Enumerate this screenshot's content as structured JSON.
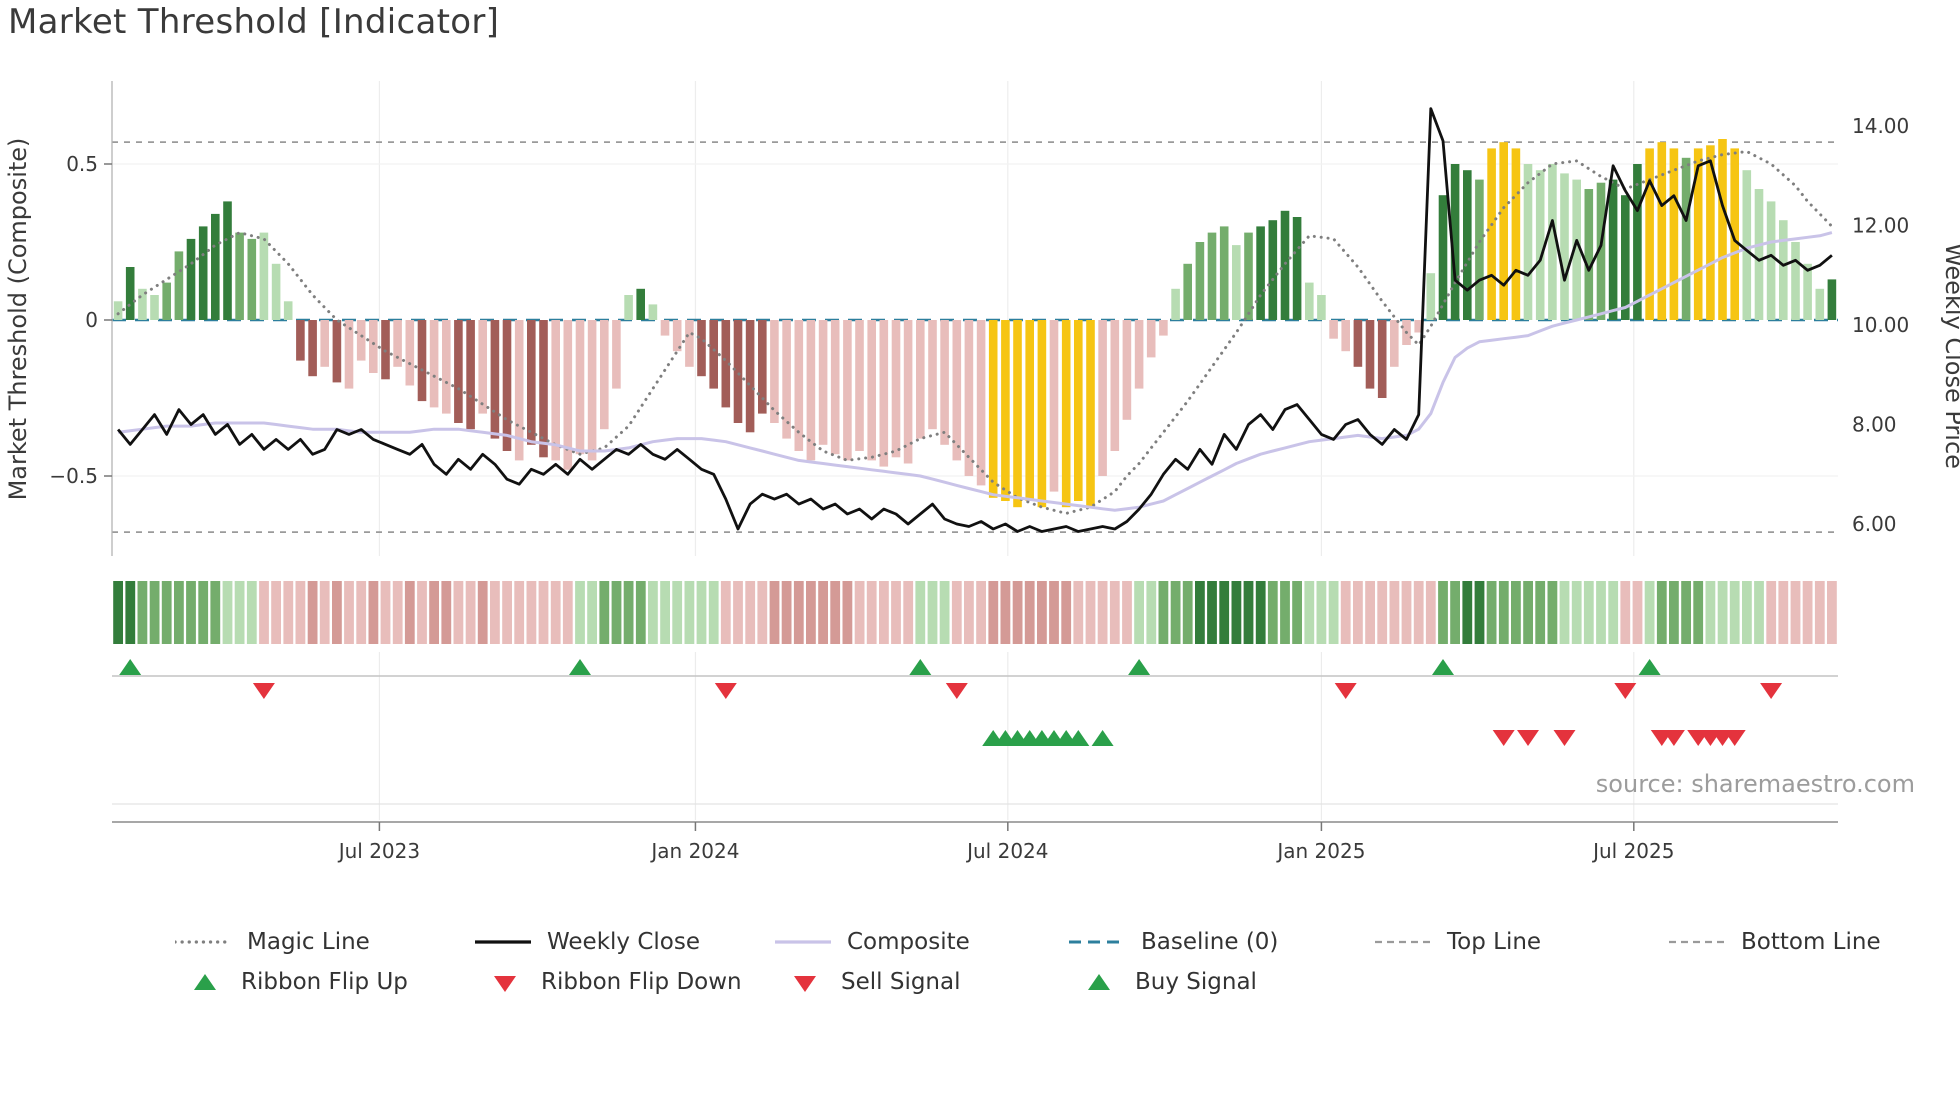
{
  "source": "source: sharemaestro.com",
  "colors": {
    "g1": "#b7dcb2",
    "g2": "#74ad6c",
    "g3": "#337d3b",
    "p1": "#e8bdbb",
    "p2": "#d49a96",
    "p3": "#a25d58",
    "au": "#f6c513",
    "close": "#111111",
    "composite": "#c9c3e8",
    "magic": "#7f7f7f",
    "baseline": "#2d7f9d",
    "guides": "#9a9a9a",
    "buy": "#2aa04a",
    "sell": "#e4333d"
  },
  "chart_data": {
    "type": "combo-bar-line",
    "title": "Market Threshold [Indicator]",
    "frequency": "weekly",
    "n_points": 142,
    "grid": "light",
    "legend_position": "bottom",
    "axes": {
      "left_title": "Market Threshold (Composite)",
      "right_title": "Weekly Close Price",
      "left_ticks": [
        {
          "v": 0.5,
          "label": "0.5"
        },
        {
          "v": 0.0,
          "label": "0"
        },
        {
          "v": -0.5,
          "label": "−0.5"
        }
      ],
      "right_ticks": [
        {
          "v": 14.0,
          "label": "14.00"
        },
        {
          "v": 12.0,
          "label": "12.00"
        },
        {
          "v": 10.0,
          "label": "10.00"
        },
        {
          "v": 8.0,
          "label": "8.00"
        },
        {
          "v": 6.0,
          "label": "6.00"
        }
      ],
      "x_ticks": [
        {
          "week": 21.5,
          "label": "Jul 2023"
        },
        {
          "week": 47.5,
          "label": "Jan 2024"
        },
        {
          "week": 73.2,
          "label": "Jul 2024"
        },
        {
          "week": 99.0,
          "label": "Jan 2025"
        },
        {
          "week": 124.7,
          "label": "Jul 2025"
        }
      ],
      "left_ylim": [
        -0.76,
        0.77
      ],
      "right_ylim": [
        5.4,
        14.9
      ]
    },
    "reference_lines": {
      "top_line": 0.57,
      "baseline": 0.0,
      "bottom_line": -0.68
    },
    "threshold_bars": [
      0.06,
      0.17,
      0.1,
      0.08,
      0.12,
      0.22,
      0.26,
      0.3,
      0.34,
      0.38,
      0.28,
      0.26,
      0.28,
      0.18,
      0.06,
      -0.13,
      -0.18,
      -0.15,
      -0.2,
      -0.22,
      -0.13,
      -0.17,
      -0.19,
      -0.15,
      -0.21,
      -0.26,
      -0.28,
      -0.3,
      -0.33,
      -0.35,
      -0.3,
      -0.38,
      -0.42,
      -0.45,
      -0.4,
      -0.44,
      -0.45,
      -0.48,
      -0.43,
      -0.45,
      -0.35,
      -0.22,
      0.08,
      0.1,
      0.05,
      -0.05,
      -0.1,
      -0.15,
      -0.18,
      -0.22,
      -0.28,
      -0.33,
      -0.36,
      -0.3,
      -0.33,
      -0.38,
      -0.42,
      -0.45,
      -0.4,
      -0.43,
      -0.45,
      -0.42,
      -0.45,
      -0.47,
      -0.44,
      -0.46,
      -0.38,
      -0.35,
      -0.4,
      -0.45,
      -0.5,
      -0.53,
      -0.57,
      -0.58,
      -0.6,
      -0.58,
      -0.6,
      -0.55,
      -0.6,
      -0.58,
      -0.6,
      -0.5,
      -0.42,
      -0.32,
      -0.22,
      -0.12,
      -0.05,
      0.1,
      0.18,
      0.25,
      0.28,
      0.3,
      0.24,
      0.28,
      0.3,
      0.32,
      0.35,
      0.33,
      0.12,
      0.08,
      -0.06,
      -0.1,
      -0.15,
      -0.22,
      -0.25,
      -0.15,
      -0.08,
      -0.04,
      0.15,
      0.4,
      0.5,
      0.48,
      0.45,
      0.55,
      0.57,
      0.55,
      0.5,
      0.48,
      0.5,
      0.47,
      0.45,
      0.42,
      0.44,
      0.45,
      0.4,
      0.5,
      0.55,
      0.57,
      0.55,
      0.52,
      0.55,
      0.56,
      0.58,
      0.55,
      0.48,
      0.42,
      0.38,
      0.32,
      0.25,
      0.18,
      0.1,
      0.13
    ],
    "bar_colors": [
      "g1",
      "g3",
      "g1",
      "g1",
      "g2",
      "g2",
      "g3",
      "g3",
      "g3",
      "g3",
      "g2",
      "g2",
      "g1",
      "g1",
      "g1",
      "p3",
      "p3",
      "p1",
      "p3",
      "p1",
      "p1",
      "p1",
      "p3",
      "p1",
      "p1",
      "p3",
      "p1",
      "p1",
      "p3",
      "p3",
      "p1",
      "p3",
      "p3",
      "p1",
      "p3",
      "p3",
      "p1",
      "p1",
      "p1",
      "p1",
      "p1",
      "p1",
      "g1",
      "g3",
      "g1",
      "p1",
      "p1",
      "p1",
      "p3",
      "p3",
      "p3",
      "p3",
      "p3",
      "p3",
      "p1",
      "p1",
      "p1",
      "p1",
      "p1",
      "p1",
      "p1",
      "p1",
      "p1",
      "p1",
      "p1",
      "p1",
      "p1",
      "p1",
      "p1",
      "p1",
      "p1",
      "p1",
      "au",
      "au",
      "au",
      "au",
      "au",
      "p1",
      "au",
      "au",
      "au",
      "p1",
      "p1",
      "p1",
      "p1",
      "p1",
      "p1",
      "g1",
      "g2",
      "g2",
      "g2",
      "g2",
      "g1",
      "g2",
      "g3",
      "g3",
      "g3",
      "g3",
      "g1",
      "g1",
      "p1",
      "p1",
      "p3",
      "p3",
      "p3",
      "p1",
      "p1",
      "p1",
      "g1",
      "g3",
      "g3",
      "g3",
      "g2",
      "au",
      "au",
      "au",
      "g1",
      "g1",
      "g1",
      "g1",
      "g1",
      "g2",
      "g2",
      "g3",
      "g3",
      "g3",
      "au",
      "au",
      "au",
      "g2",
      "au",
      "au",
      "au",
      "au",
      "g1",
      "g1",
      "g1",
      "g1",
      "g1",
      "g1",
      "g1",
      "g3"
    ],
    "weekly_close": [
      7.9,
      7.6,
      7.9,
      8.2,
      7.8,
      8.3,
      8.0,
      8.2,
      7.8,
      8.0,
      7.6,
      7.8,
      7.5,
      7.7,
      7.5,
      7.7,
      7.4,
      7.5,
      7.9,
      7.8,
      7.9,
      7.7,
      7.6,
      7.5,
      7.4,
      7.6,
      7.2,
      7.0,
      7.3,
      7.1,
      7.4,
      7.2,
      6.9,
      6.8,
      7.1,
      7.0,
      7.2,
      7.0,
      7.3,
      7.1,
      7.3,
      7.5,
      7.4,
      7.6,
      7.4,
      7.3,
      7.5,
      7.3,
      7.1,
      7.0,
      6.5,
      5.9,
      6.4,
      6.6,
      6.5,
      6.6,
      6.4,
      6.5,
      6.3,
      6.4,
      6.2,
      6.3,
      6.1,
      6.3,
      6.2,
      6.0,
      6.2,
      6.4,
      6.1,
      6.0,
      5.95,
      6.05,
      5.9,
      6.0,
      5.85,
      5.95,
      5.85,
      5.9,
      5.95,
      5.85,
      5.9,
      5.95,
      5.9,
      6.05,
      6.3,
      6.6,
      7.0,
      7.3,
      7.1,
      7.5,
      7.2,
      7.8,
      7.5,
      8.0,
      8.2,
      7.9,
      8.3,
      8.4,
      8.1,
      7.8,
      7.7,
      8.0,
      8.1,
      7.8,
      7.6,
      7.9,
      7.7,
      8.2,
      14.35,
      13.7,
      10.9,
      10.7,
      10.9,
      11.0,
      10.8,
      11.1,
      11.0,
      11.3,
      12.1,
      10.9,
      11.7,
      11.1,
      11.6,
      13.2,
      12.7,
      12.3,
      12.9,
      12.4,
      12.6,
      12.1,
      13.2,
      13.3,
      12.4,
      11.7,
      11.5,
      11.3,
      11.4,
      11.2,
      11.3,
      11.1,
      11.2,
      11.4
    ],
    "composite": [
      -0.36,
      -0.355,
      -0.35,
      -0.345,
      -0.34,
      -0.34,
      -0.34,
      -0.335,
      -0.33,
      -0.33,
      -0.33,
      -0.33,
      -0.33,
      -0.335,
      -0.34,
      -0.345,
      -0.35,
      -0.35,
      -0.35,
      -0.355,
      -0.36,
      -0.36,
      -0.36,
      -0.36,
      -0.36,
      -0.355,
      -0.35,
      -0.35,
      -0.35,
      -0.355,
      -0.36,
      -0.365,
      -0.37,
      -0.38,
      -0.39,
      -0.395,
      -0.4,
      -0.41,
      -0.42,
      -0.42,
      -0.42,
      -0.415,
      -0.41,
      -0.4,
      -0.39,
      -0.385,
      -0.38,
      -0.38,
      -0.38,
      -0.385,
      -0.39,
      -0.4,
      -0.41,
      -0.42,
      -0.43,
      -0.44,
      -0.45,
      -0.455,
      -0.46,
      -0.465,
      -0.47,
      -0.475,
      -0.48,
      -0.485,
      -0.49,
      -0.495,
      -0.5,
      -0.51,
      -0.52,
      -0.53,
      -0.54,
      -0.55,
      -0.56,
      -0.565,
      -0.57,
      -0.575,
      -0.58,
      -0.585,
      -0.59,
      -0.595,
      -0.6,
      -0.605,
      -0.61,
      -0.605,
      -0.6,
      -0.59,
      -0.58,
      -0.56,
      -0.54,
      -0.52,
      -0.5,
      -0.48,
      -0.46,
      -0.445,
      -0.43,
      -0.42,
      -0.41,
      -0.4,
      -0.39,
      -0.385,
      -0.38,
      -0.375,
      -0.37,
      -0.375,
      -0.38,
      -0.375,
      -0.37,
      -0.35,
      -0.3,
      -0.2,
      -0.12,
      -0.09,
      -0.07,
      -0.065,
      -0.06,
      -0.055,
      -0.05,
      -0.035,
      -0.02,
      -0.01,
      0.0,
      0.01,
      0.02,
      0.03,
      0.04,
      0.06,
      0.08,
      0.1,
      0.12,
      0.14,
      0.16,
      0.18,
      0.2,
      0.215,
      0.23,
      0.24,
      0.25,
      0.255,
      0.26,
      0.265,
      0.27,
      0.28
    ],
    "magic_line": [
      0.02,
      0.05,
      0.08,
      0.105,
      0.13,
      0.155,
      0.18,
      0.21,
      0.24,
      0.26,
      0.28,
      0.27,
      0.26,
      0.22,
      0.18,
      0.13,
      0.08,
      0.04,
      0.0,
      -0.025,
      -0.05,
      -0.075,
      -0.1,
      -0.12,
      -0.14,
      -0.16,
      -0.18,
      -0.2,
      -0.22,
      -0.245,
      -0.27,
      -0.295,
      -0.32,
      -0.34,
      -0.36,
      -0.38,
      -0.4,
      -0.415,
      -0.43,
      -0.42,
      -0.41,
      -0.375,
      -0.34,
      -0.28,
      -0.22,
      -0.16,
      -0.1,
      -0.04,
      -0.06,
      -0.095,
      -0.13,
      -0.17,
      -0.21,
      -0.25,
      -0.29,
      -0.325,
      -0.36,
      -0.39,
      -0.42,
      -0.435,
      -0.45,
      -0.445,
      -0.44,
      -0.43,
      -0.42,
      -0.4,
      -0.38,
      -0.37,
      -0.36,
      -0.4,
      -0.44,
      -0.48,
      -0.52,
      -0.545,
      -0.57,
      -0.585,
      -0.6,
      -0.61,
      -0.62,
      -0.61,
      -0.6,
      -0.575,
      -0.55,
      -0.5,
      -0.46,
      -0.41,
      -0.36,
      -0.31,
      -0.26,
      -0.205,
      -0.15,
      -0.095,
      -0.04,
      0.02,
      0.08,
      0.13,
      0.18,
      0.225,
      0.27,
      0.265,
      0.26,
      0.215,
      0.17,
      0.115,
      0.06,
      0.01,
      -0.04,
      -0.08,
      -0.02,
      0.05,
      0.12,
      0.185,
      0.25,
      0.305,
      0.36,
      0.4,
      0.44,
      0.47,
      0.5,
      0.505,
      0.51,
      0.485,
      0.46,
      0.44,
      0.42,
      0.435,
      0.45,
      0.465,
      0.48,
      0.495,
      0.51,
      0.52,
      0.53,
      0.535,
      0.54,
      0.52,
      0.5,
      0.465,
      0.43,
      0.38,
      0.34,
      0.3
    ],
    "ribbon": [
      "g3",
      "g3",
      "g2",
      "g2",
      "g2",
      "g2",
      "g2",
      "g2",
      "g2",
      "g1",
      "g1",
      "g1",
      "p1",
      "p1",
      "p1",
      "p1",
      "p2",
      "p1",
      "p2",
      "p1",
      "p1",
      "p2",
      "p1",
      "p1",
      "p2",
      "p1",
      "p2",
      "p2",
      "p1",
      "p1",
      "p2",
      "p1",
      "p1",
      "p1",
      "p1",
      "p1",
      "p1",
      "p1",
      "g1",
      "g1",
      "g2",
      "g2",
      "g2",
      "g2",
      "g1",
      "g1",
      "g1",
      "g1",
      "g1",
      "g1",
      "p1",
      "p1",
      "p1",
      "p1",
      "p2",
      "p2",
      "p2",
      "p2",
      "p2",
      "p2",
      "p2",
      "p1",
      "p1",
      "p1",
      "p1",
      "p1",
      "g1",
      "g1",
      "g1",
      "p1",
      "p1",
      "p1",
      "p2",
      "p2",
      "p2",
      "p2",
      "p2",
      "p2",
      "p2",
      "p1",
      "p1",
      "p1",
      "p1",
      "p1",
      "g1",
      "g1",
      "g2",
      "g2",
      "g2",
      "g3",
      "g3",
      "g3",
      "g3",
      "g3",
      "g3",
      "g2",
      "g2",
      "g2",
      "g1",
      "g1",
      "g1",
      "p1",
      "p1",
      "p1",
      "p1",
      "p1",
      "p1",
      "p1",
      "p1",
      "g2",
      "g2",
      "g3",
      "g3",
      "g2",
      "g2",
      "g2",
      "g2",
      "g2",
      "g2",
      "g1",
      "g1",
      "g1",
      "g1",
      "g1",
      "p1",
      "p1",
      "g1",
      "g2",
      "g2",
      "g2",
      "g2",
      "g1",
      "g1",
      "g1",
      "g1",
      "g1",
      "p1",
      "p1",
      "p1",
      "p1",
      "p1",
      "p1"
    ],
    "markers": {
      "ribbon_flip_up_weeks": [
        1,
        38,
        66,
        84,
        109,
        126
      ],
      "ribbon_flip_down_weeks": [
        12,
        50,
        69,
        101,
        124,
        136
      ],
      "buy_signal_weeks": [
        72,
        73,
        74,
        75,
        76,
        77,
        78,
        79,
        81
      ],
      "sell_signal_weeks": [
        114,
        116,
        119,
        127,
        128,
        130,
        131,
        132,
        133
      ]
    }
  },
  "legend": {
    "row1": [
      {
        "label": "Magic Line",
        "type": "line-dotted",
        "color": "#7f7f7f"
      },
      {
        "label": "Weekly Close",
        "type": "line-solid",
        "color": "#111111"
      },
      {
        "label": "Composite",
        "type": "line-solid",
        "color": "#c9c3e8"
      },
      {
        "label": "Baseline (0)",
        "type": "line-dashed",
        "color": "#2d7f9d"
      },
      {
        "label": "Top Line",
        "type": "line-dashed-thin",
        "color": "#9a9a9a"
      },
      {
        "label": "Bottom Line",
        "type": "line-dashed-thin",
        "color": "#9a9a9a"
      }
    ],
    "row2": [
      {
        "label": "Ribbon Flip Up",
        "type": "triangle-up",
        "color": "#2aa04a"
      },
      {
        "label": "Ribbon Flip Down",
        "type": "triangle-down",
        "color": "#e4333d"
      },
      {
        "label": "Sell Signal",
        "type": "triangle-down",
        "color": "#e4333d"
      },
      {
        "label": "Buy Signal",
        "type": "triangle-up",
        "color": "#2aa04a"
      }
    ]
  }
}
